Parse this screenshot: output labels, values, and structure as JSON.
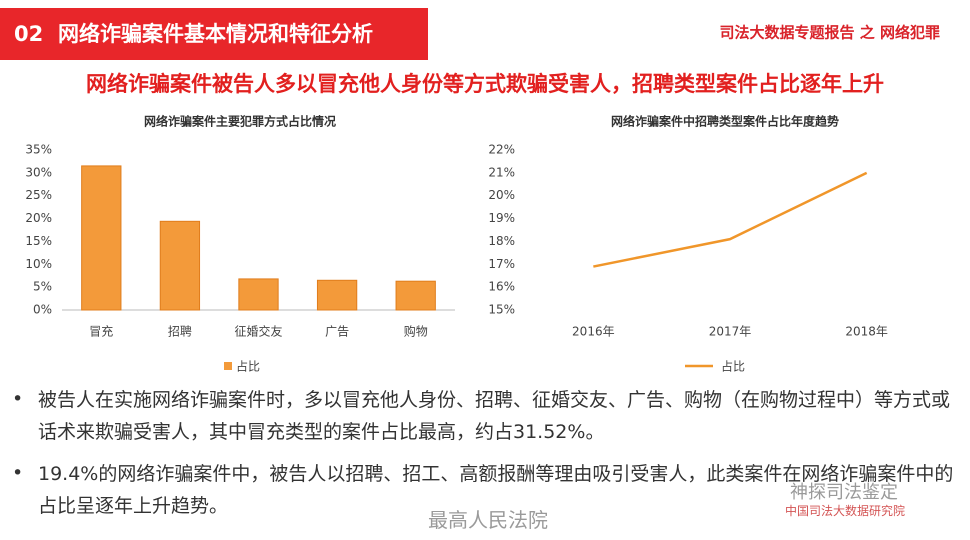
{
  "header": {
    "number": "02",
    "title": "网络诈骗案件基本情况和特征分析",
    "report": "司法大数据专题报告 之 网络犯罪"
  },
  "headline": "网络诈骗案件被告人多以冒充他人身份等方式欺骗受害人，招聘类型案件占比逐年上升",
  "chart_data": [
    {
      "type": "bar",
      "title": "网络诈骗案件主要犯罪方式占比情况",
      "categories": [
        "冒充",
        "招聘",
        "征婚交友",
        "广告",
        "购物"
      ],
      "series": [
        {
          "name": "占比",
          "color": "#f39a3a",
          "values": [
            31.52,
            19.4,
            6.8,
            6.5,
            6.3
          ]
        }
      ],
      "ylim": [
        0,
        35
      ],
      "yticks": [
        {
          "value": 0,
          "label": "0%"
        },
        {
          "value": 5,
          "label": "5%"
        },
        {
          "value": 10,
          "label": "10%"
        },
        {
          "value": 15,
          "label": "15%"
        },
        {
          "value": 20,
          "label": "20%"
        },
        {
          "value": 25,
          "label": "25%"
        },
        {
          "value": 30,
          "label": "30%"
        },
        {
          "value": 35,
          "label": "35%"
        }
      ],
      "grid": false,
      "legend": "bottom"
    },
    {
      "type": "line",
      "title": "网络诈骗案件中招聘类型案件占比年度趋势",
      "categories": [
        "2016年",
        "2017年",
        "2018年"
      ],
      "series": [
        {
          "name": "占比",
          "color": "#f0962a",
          "values": [
            16.9,
            18.1,
            21.0
          ]
        }
      ],
      "ylim": [
        15,
        22
      ],
      "yticks": [
        {
          "value": 15,
          "label": "15%"
        },
        {
          "value": 16,
          "label": "16%"
        },
        {
          "value": 17,
          "label": "17%"
        },
        {
          "value": 18,
          "label": "18%"
        },
        {
          "value": 19,
          "label": "19%"
        },
        {
          "value": 20,
          "label": "20%"
        },
        {
          "value": 21,
          "label": "21%"
        },
        {
          "value": 22,
          "label": "22%"
        }
      ],
      "grid": false,
      "legend": "bottom"
    }
  ],
  "bullets": [
    "被告人在实施网络诈骗案件时，多以冒充他人身份、招聘、征婚交友、广告、购物（在购物过程中）等方式或话术来欺骗受害人，其中冒充类型的案件占比最高，约占31.52%。",
    "19.4%的网络诈骗案件中，被告人以招聘、招工、高额报酬等理由吸引受害人，此类案件在网络诈骗案件中的占比呈逐年上升趋势。"
  ],
  "watermarks": [
    "最高人民法院",
    "神探司法鉴定",
    "中国司法大数据研究院"
  ]
}
